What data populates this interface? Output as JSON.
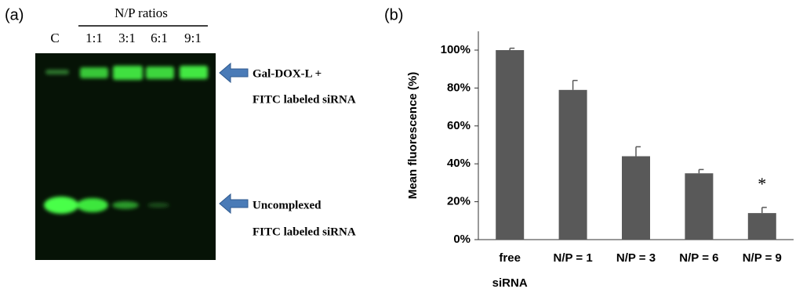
{
  "panel_a": {
    "label": "(a)",
    "header": "N/P ratios",
    "lanes": [
      "C",
      "1:1",
      "3:1",
      "6:1",
      "9:1"
    ],
    "annotations": [
      "Gal-DOX-L +",
      "FITC labeled siRNA",
      "Uncomplexed",
      "FITC labeled siRNA"
    ]
  },
  "chart_data": {
    "type": "bar",
    "label": "(b)",
    "y_label": "Mean fluorescence (%)",
    "categories": [
      "free\nsiRNA",
      "N/P = 1",
      "N/P = 3",
      "N/P = 6",
      "N/P = 9"
    ],
    "values": [
      100,
      79,
      44,
      35,
      14
    ],
    "errors": [
      1,
      5,
      5,
      2,
      3
    ],
    "color": "#595959",
    "annotation": "*",
    "ylim": [
      0,
      100
    ],
    "yticks": [
      {
        "value": 0,
        "label": "0%"
      },
      {
        "value": 20,
        "label": "20%"
      },
      {
        "value": 40,
        "label": "40%"
      },
      {
        "value": 60,
        "label": "60%"
      },
      {
        "value": 80,
        "label": "80%"
      },
      {
        "value": 100,
        "label": "100%"
      }
    ]
  }
}
